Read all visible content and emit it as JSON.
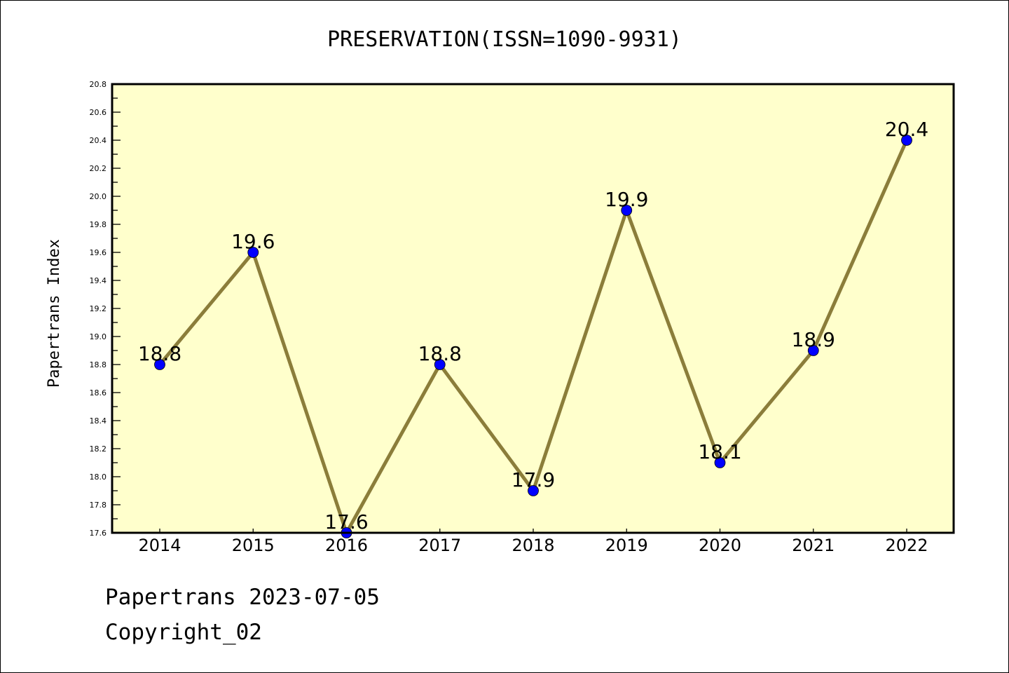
{
  "chart_data": {
    "type": "line",
    "title": "PRESERVATION(ISSN=1090-9931)",
    "xlabel": "",
    "ylabel": "Papertrans Index",
    "categories": [
      "2014",
      "2015",
      "2016",
      "2017",
      "2018",
      "2019",
      "2020",
      "2021",
      "2022"
    ],
    "series": [
      {
        "name": "Papertrans Index",
        "values": [
          18.8,
          19.6,
          17.6,
          18.8,
          17.9,
          19.9,
          18.1,
          18.9,
          20.4
        ],
        "data_labels": [
          "18.8",
          "19.6",
          "17.6",
          "18.8",
          "17.9",
          "19.9",
          "18.1",
          "18.9",
          "20.4"
        ]
      }
    ],
    "ylim": [
      17.6,
      20.8
    ],
    "yticks": [
      "17.6",
      "17.8",
      "18.0",
      "18.2",
      "18.4",
      "18.6",
      "18.8",
      "19.0",
      "19.2",
      "19.4",
      "19.6",
      "19.8",
      "20.0",
      "20.2",
      "20.4",
      "20.6",
      "20.8"
    ],
    "grid": false,
    "legend": "none",
    "colors": {
      "line": "#8b7d3a",
      "marker": "#0000ff",
      "plot_background": "#ffffcc",
      "axis": "#000000"
    }
  },
  "footer": {
    "line1": "Papertrans 2023-07-05",
    "line2": "Copyright_02"
  }
}
